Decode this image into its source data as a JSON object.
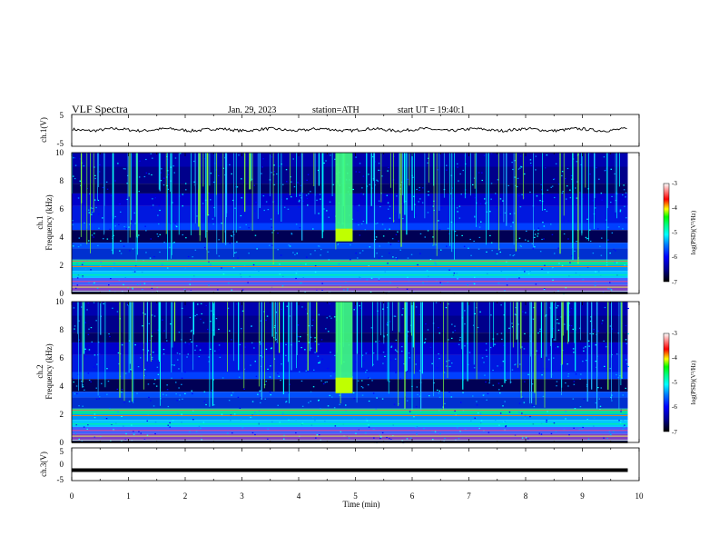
{
  "header": {
    "title": "VLF Spectra",
    "date": "Jan. 29, 2023",
    "station": "station=ATH",
    "start": "start UT = 19:40:1"
  },
  "colors": {
    "spectrum_ramp": [
      "#000000",
      "#00008b",
      "#0000ff",
      "#0080ff",
      "#00ffff",
      "#00ff80",
      "#00ff00",
      "#ffff00",
      "#ff0000",
      "#ffffff"
    ],
    "line": "#000000"
  },
  "chart_data": [
    {
      "type": "line",
      "ylabel": "ch.1(V)",
      "ylim": [
        -5,
        5
      ],
      "yticks": [
        "5",
        "-5"
      ],
      "xlim": [
        0,
        10
      ],
      "series_level": 0.2
    },
    {
      "type": "heatmap",
      "ylabel": "ch.1",
      "ylabel2": "Frequency (kHz)",
      "ylim": [
        0,
        10
      ],
      "yticks": [
        "10",
        "8",
        "6",
        "4",
        "2",
        "0"
      ],
      "xlim": [
        0,
        10
      ],
      "data_end_min": 9.8,
      "burst": {
        "start_min": 4.65,
        "end_min": 4.95,
        "freq_low_khz": 3.7
      },
      "colorbar": {
        "label": "log(PSD)(V²/Hz)",
        "range": [
          -7,
          -3
        ],
        "ticks": [
          "-3",
          "-4",
          "-5",
          "-6",
          "-7"
        ]
      }
    },
    {
      "type": "heatmap",
      "ylabel": "ch.2",
      "ylabel2": "Frequency (kHz)",
      "ylim": [
        0,
        10
      ],
      "yticks": [
        "10",
        "8",
        "6",
        "4",
        "2",
        "0"
      ],
      "xlim": [
        0,
        10
      ],
      "data_end_min": 9.8,
      "burst": {
        "start_min": 4.65,
        "end_min": 4.95,
        "freq_low_khz": 3.5
      },
      "colorbar": {
        "label": "log(PSD)(V²/Hz)",
        "range": [
          -7,
          -3
        ],
        "ticks": [
          "-3",
          "-4",
          "-5",
          "-6",
          "-7"
        ]
      }
    },
    {
      "type": "line",
      "ylabel": "ch.3(V)",
      "ylim": [
        -5,
        5
      ],
      "yticks": [
        "5",
        "0",
        "-5"
      ],
      "xlim": [
        0,
        10
      ],
      "series_level": -1.8,
      "xlabel": "Time (min)",
      "xticks": [
        "0",
        "1",
        "2",
        "3",
        "4",
        "5",
        "6",
        "7",
        "8",
        "9",
        "10"
      ]
    }
  ]
}
